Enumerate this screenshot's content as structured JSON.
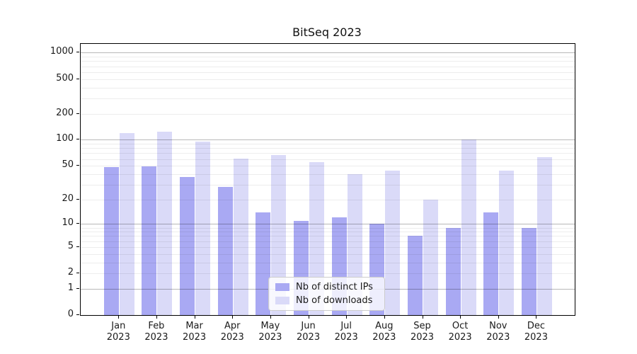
{
  "figure": {
    "title": "BitSeq 2023"
  },
  "chart_data": {
    "type": "bar",
    "title": "BitSeq 2023",
    "categories": [
      "Jan 2023",
      "Feb 2023",
      "Mar 2023",
      "Apr 2023",
      "May 2023",
      "Jun 2023",
      "Jul 2023",
      "Aug 2023",
      "Sep 2023",
      "Oct 2023",
      "Nov 2023",
      "Dec 2023"
    ],
    "series": [
      {
        "name": "Nb of distinct IPs",
        "color": "#a9a9f3",
        "values": [
          48,
          49,
          37,
          28,
          14,
          11,
          12,
          10,
          7,
          9,
          14,
          9
        ]
      },
      {
        "name": "Nb of downloads",
        "color": "#dadaf8",
        "values": [
          120,
          125,
          95,
          61,
          67,
          55,
          40,
          44,
          20,
          101,
          44,
          63
        ]
      }
    ],
    "y_scale": "log10(value+1)",
    "y_ticks": [
      0,
      1,
      2,
      5,
      10,
      20,
      50,
      100,
      200,
      500,
      1000
    ],
    "major_gridlines": [
      1,
      10,
      100,
      1000
    ],
    "ylim": [
      0,
      1260
    ],
    "grid": true,
    "legend_position": "inside-bottom-center",
    "xlabel": "",
    "ylabel": ""
  }
}
